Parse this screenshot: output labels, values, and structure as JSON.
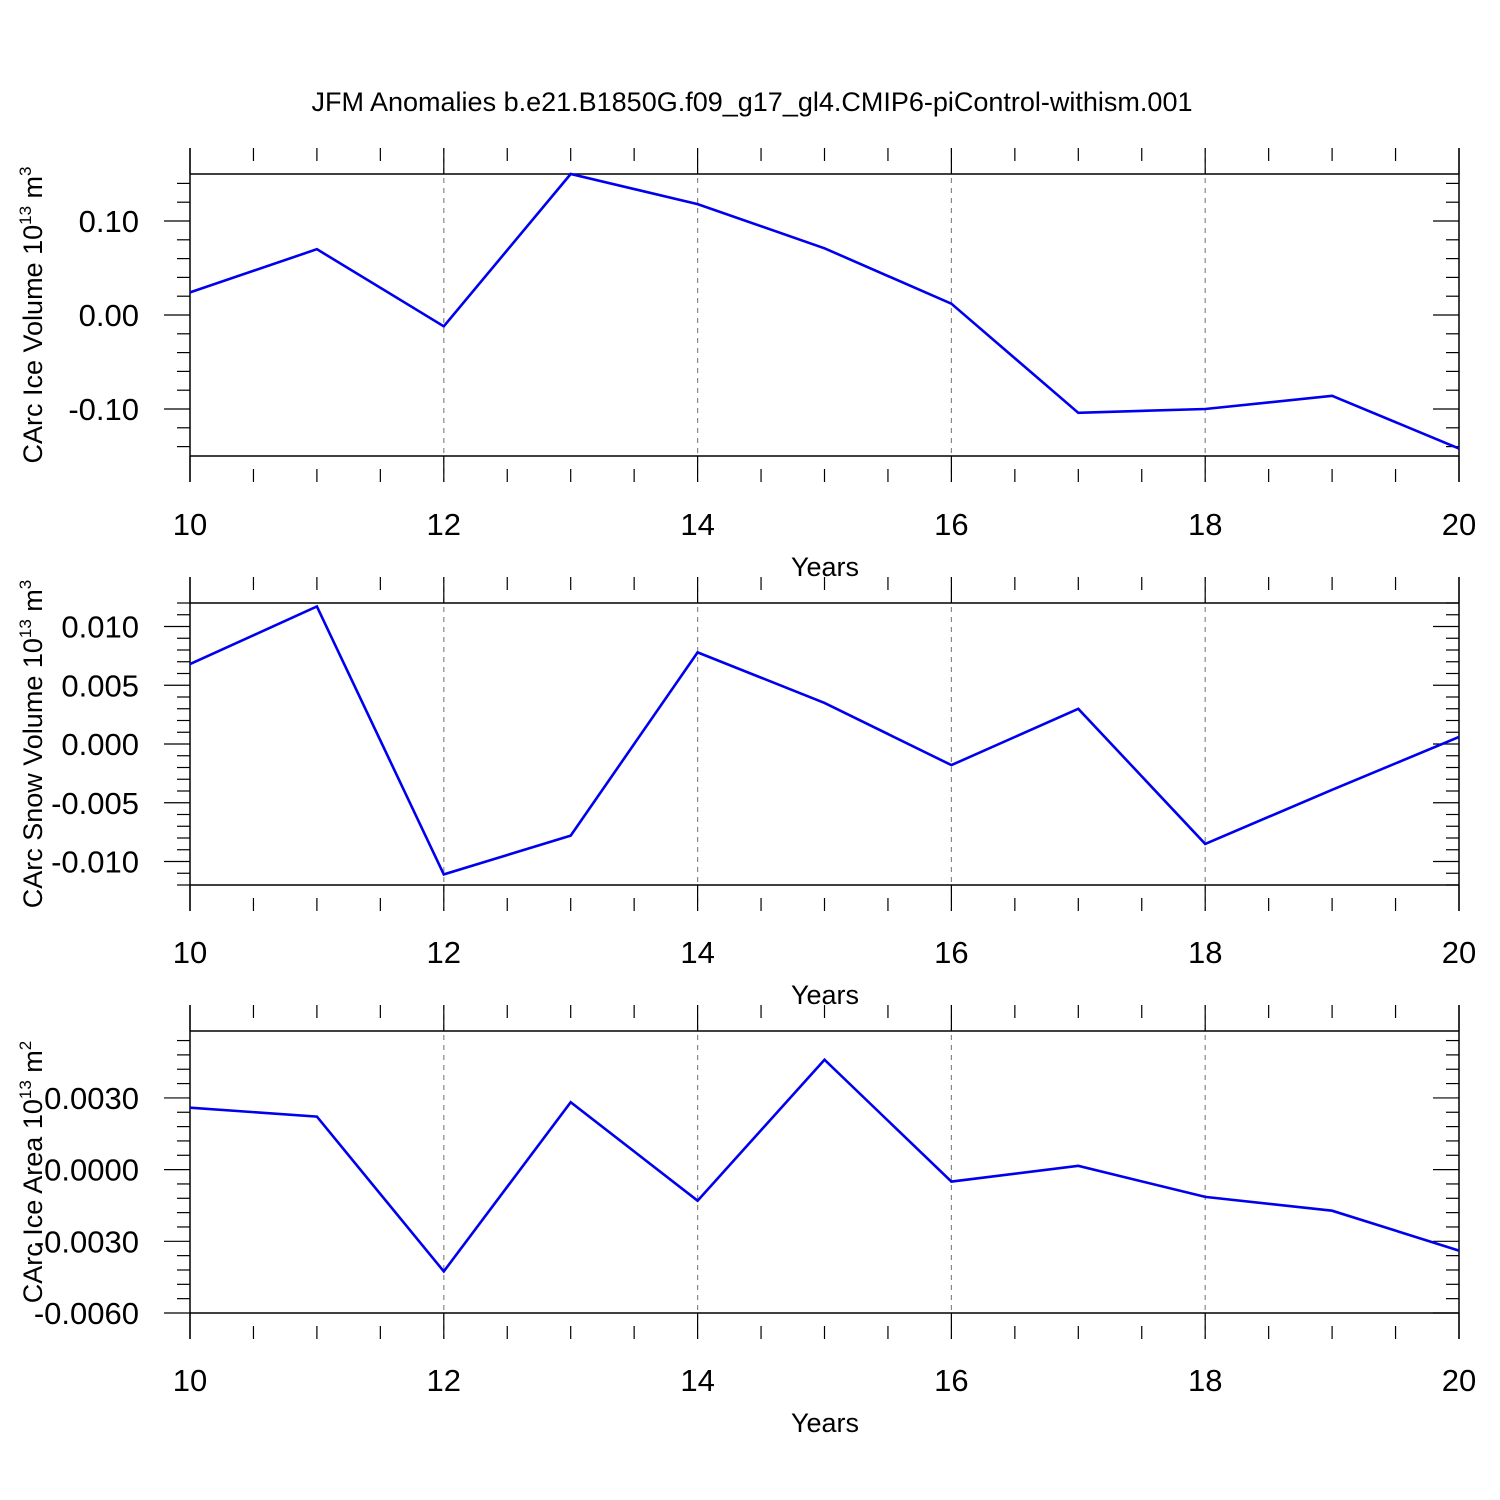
{
  "figure_title": "JFM Anomalies b.e21.B1850G.f09_g17_gl4.CMIP6-piControl-withism.001",
  "colors": {
    "line": "#0000ee",
    "axes": "#000000",
    "grid": "#888888"
  },
  "chart_data": [
    {
      "type": "line",
      "title": "JFM Anomalies b.e21.B1850G.f09_g17_gl4.CMIP6-piControl-withism.001",
      "xlabel": "Years",
      "ylabel": {
        "main": "CArc Ice Volume 10",
        "sup": "13",
        "unit": " m",
        "unit_sup": "3"
      },
      "x": [
        10,
        11,
        12,
        13,
        14,
        15,
        16,
        17,
        18,
        19,
        20
      ],
      "series": [
        {
          "name": "CArc Ice Volume",
          "values": [
            0.024,
            0.07,
            -0.012,
            0.15,
            0.118,
            0.071,
            0.012,
            -0.104,
            -0.1,
            -0.086,
            -0.142
          ]
        }
      ],
      "xlim": [
        10,
        20
      ],
      "ylim": [
        -0.15,
        0.15
      ],
      "xticks": [
        10,
        12,
        14,
        16,
        18,
        20
      ],
      "xtick_labels": [
        "10",
        "12",
        "14",
        "16",
        "18",
        "20"
      ],
      "yticks": [
        -0.1,
        0.0,
        0.1
      ],
      "ytick_labels": [
        "-0.10",
        "0.00",
        "0.10"
      ],
      "grid": "vertical-dashed"
    },
    {
      "type": "line",
      "xlabel": "Years",
      "ylabel": {
        "main": "CArc Snow Volume 10",
        "sup": "13",
        "unit": " m",
        "unit_sup": "3"
      },
      "x": [
        10,
        11,
        12,
        13,
        14,
        15,
        16,
        17,
        18,
        19,
        20
      ],
      "series": [
        {
          "name": "CArc Snow Volume",
          "values": [
            0.0068,
            0.0117,
            -0.0111,
            -0.0078,
            0.0078,
            0.0035,
            -0.0018,
            0.003,
            -0.0085,
            -0.0039,
            0.0006
          ]
        }
      ],
      "xlim": [
        10,
        20
      ],
      "ylim": [
        -0.012,
        0.012
      ],
      "xticks": [
        10,
        12,
        14,
        16,
        18,
        20
      ],
      "xtick_labels": [
        "10",
        "12",
        "14",
        "16",
        "18",
        "20"
      ],
      "yticks": [
        -0.01,
        -0.005,
        0.0,
        0.005,
        0.01
      ],
      "ytick_labels": [
        "-0.010",
        "-0.005",
        "0.000",
        "0.005",
        "0.010"
      ],
      "grid": "vertical-dashed"
    },
    {
      "type": "line",
      "xlabel": "Years",
      "ylabel": {
        "main": "CArc Ice Area 10",
        "sup": "13",
        "unit": " m",
        "unit_sup": "2"
      },
      "x": [
        10,
        11,
        12,
        13,
        14,
        15,
        16,
        17,
        18,
        19,
        20
      ],
      "series": [
        {
          "name": "CArc Ice Area",
          "values": [
            0.00259,
            0.00222,
            -0.00426,
            0.00282,
            -0.0013,
            0.0046,
            -0.0005,
            0.00016,
            -0.00114,
            -0.00172,
            -0.00339
          ]
        }
      ],
      "xlim": [
        10,
        20
      ],
      "ylim": [
        -0.006,
        0.006
      ],
      "xticks": [
        10,
        12,
        14,
        16,
        18,
        20
      ],
      "xtick_labels": [
        "10",
        "12",
        "14",
        "16",
        "18",
        "20"
      ],
      "yticks": [
        -0.006,
        -0.003,
        0.0,
        0.003
      ],
      "ytick_labels": [
        "-0.0060",
        "-0.0030",
        "0.0000",
        "0.0030"
      ],
      "grid": "vertical-dashed"
    }
  ]
}
